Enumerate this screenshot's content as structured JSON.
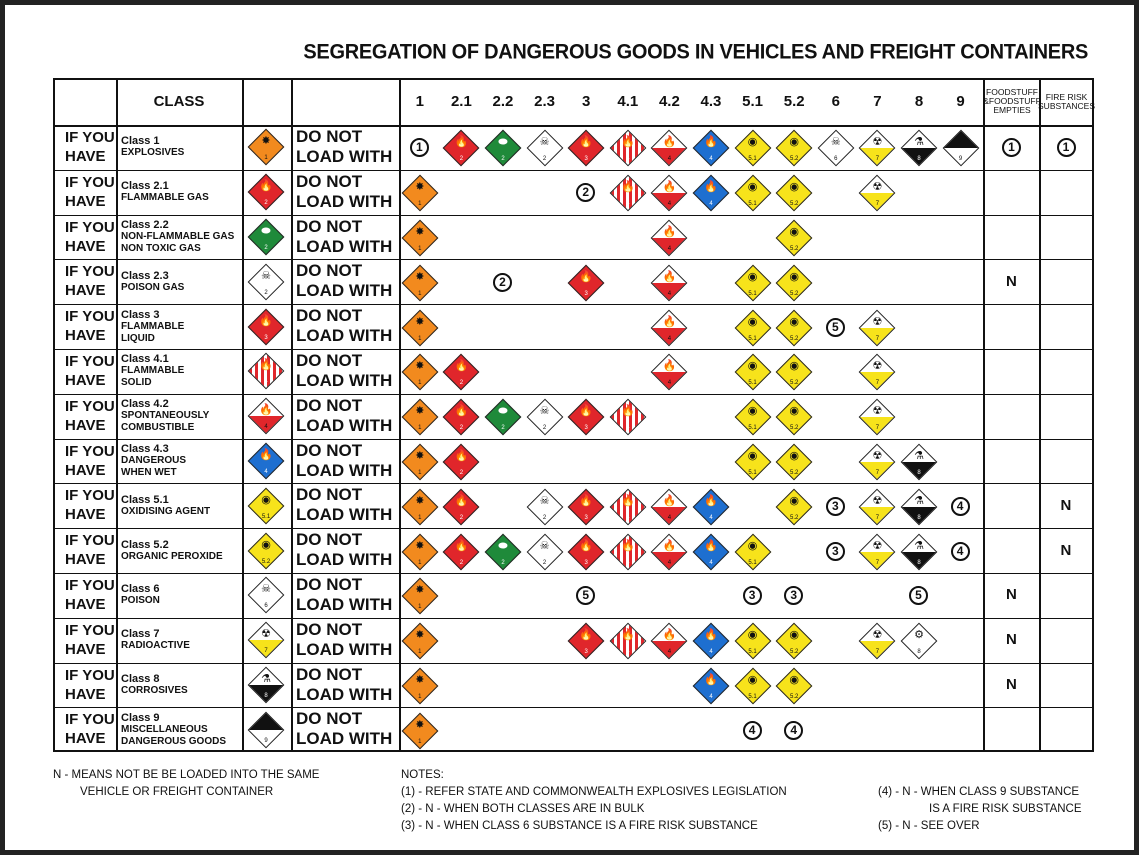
{
  "title": "SEGREGATION OF DANGEROUS GOODS IN VEHICLES AND FREIGHT CONTAINERS",
  "header": {
    "class_label": "CLASS",
    "columns": [
      "1",
      "2.1",
      "2.2",
      "2.3",
      "3",
      "4.1",
      "4.2",
      "4.3",
      "5.1",
      "5.2",
      "6",
      "7",
      "8",
      "9"
    ],
    "foodstuff": "FOODSTUFF &FOODSTUFF EMPTIES",
    "fire_risk": "FIRE RISK SUBSTANCES"
  },
  "row_labels": {
    "if_you": "IF YOU",
    "have": "HAVE",
    "do_not": "DO NOT",
    "load_with": "LOAD WITH"
  },
  "rows": [
    {
      "code": "1",
      "name_lines": [
        "Class 1",
        "EXPLOSIVES"
      ]
    },
    {
      "code": "2.1",
      "name_lines": [
        "Class 2.1",
        "FLAMMABLE GAS"
      ]
    },
    {
      "code": "2.2",
      "name_lines": [
        "Class 2.2",
        "NON-FLAMMABLE GAS",
        "NON TOXIC GAS"
      ]
    },
    {
      "code": "2.3",
      "name_lines": [
        "Class 2.3",
        "POISON GAS"
      ]
    },
    {
      "code": "3",
      "name_lines": [
        "Class 3",
        "FLAMMABLE",
        "LIQUID"
      ]
    },
    {
      "code": "4.1",
      "name_lines": [
        "Class 4.1",
        "FLAMMABLE",
        "SOLID"
      ]
    },
    {
      "code": "4.2",
      "name_lines": [
        "Class 4.2",
        "SPONTANEOUSLY",
        "COMBUSTIBLE"
      ]
    },
    {
      "code": "4.3",
      "name_lines": [
        "Class 4.3",
        "DANGEROUS",
        "WHEN WET"
      ]
    },
    {
      "code": "5.1",
      "name_lines": [
        "Class 5.1",
        "OXIDISING AGENT"
      ]
    },
    {
      "code": "5.2",
      "name_lines": [
        "Class 5.2",
        "ORGANIC PEROXIDE"
      ]
    },
    {
      "code": "6",
      "name_lines": [
        "Class 6",
        "POISON"
      ]
    },
    {
      "code": "7",
      "name_lines": [
        "Class 7",
        "RADIOACTIVE"
      ]
    },
    {
      "code": "8",
      "name_lines": [
        "Class 8",
        "CORROSIVES"
      ]
    },
    {
      "code": "9",
      "name_lines": [
        "Class 9",
        "MISCELLANEOUS",
        "DANGEROUS GOODS"
      ]
    }
  ],
  "matrix": [
    [
      "c1",
      "2.1",
      "2.2",
      "2.3",
      "3",
      "4.1",
      "4.2",
      "4.3",
      "5.1",
      "5.2",
      "6",
      "7",
      "8",
      "9",
      "c1",
      "c1"
    ],
    [
      "1",
      "",
      "",
      "",
      "c2",
      "4.1",
      "4.2",
      "4.3",
      "5.1",
      "5.2",
      "",
      "7",
      "",
      "",
      "",
      ""
    ],
    [
      "1",
      "",
      "",
      "",
      "",
      "",
      "4.2",
      "",
      "",
      "5.2",
      "",
      "",
      "",
      "",
      "",
      ""
    ],
    [
      "1",
      "",
      "c2",
      "",
      "3",
      "",
      "4.2",
      "",
      "5.1",
      "5.2",
      "",
      "",
      "",
      "",
      "N",
      ""
    ],
    [
      "1",
      "",
      "",
      "",
      "",
      "",
      "4.2",
      "",
      "5.1",
      "5.2",
      "c5",
      "7",
      "",
      "",
      "",
      ""
    ],
    [
      "1",
      "2.1",
      "",
      "",
      "",
      "",
      "4.2",
      "",
      "5.1",
      "5.2",
      "",
      "7",
      "",
      "",
      "",
      ""
    ],
    [
      "1",
      "2.1",
      "2.2",
      "2.3",
      "3",
      "4.1",
      "",
      "",
      "5.1",
      "5.2",
      "",
      "7",
      "",
      "",
      "",
      ""
    ],
    [
      "1",
      "2.1",
      "",
      "",
      "",
      "",
      "",
      "",
      "5.1",
      "5.2",
      "",
      "7",
      "8",
      "",
      "",
      ""
    ],
    [
      "1",
      "2.1",
      "",
      "2.3",
      "3",
      "4.1",
      "4.2",
      "4.3",
      "",
      "5.2",
      "c3",
      "7",
      "8",
      "c4",
      "",
      "N"
    ],
    [
      "1",
      "2.1",
      "2.2",
      "2.3",
      "3",
      "4.1",
      "4.2",
      "4.3",
      "5.1",
      "",
      "c3",
      "7",
      "8",
      "c4",
      "",
      "N"
    ],
    [
      "1",
      "",
      "",
      "",
      "c5",
      "",
      "",
      "",
      "c3",
      "c3",
      "",
      "",
      "c5",
      "",
      "N",
      ""
    ],
    [
      "1",
      "",
      "",
      "",
      "3",
      "4.1",
      "4.2",
      "4.3",
      "5.1",
      "5.2",
      "",
      "7",
      "8x",
      "",
      "N",
      ""
    ],
    [
      "1",
      "",
      "",
      "",
      "",
      "",
      "",
      "4.3",
      "5.1",
      "5.2",
      "",
      "",
      "",
      "",
      "N",
      ""
    ],
    [
      "1",
      "",
      "",
      "",
      "",
      "",
      "",
      "",
      "c4",
      "c4",
      "",
      "",
      "",
      "",
      "",
      ""
    ]
  ],
  "placards": {
    "1": {
      "bg": "#f28a1e",
      "fg": "#111",
      "glyph": "✸",
      "label": "EXPLOSIVE",
      "num": "1",
      "stripe": false
    },
    "2.1": {
      "bg": "#e0262b",
      "fg": "#fff",
      "glyph": "🔥",
      "label": "FLAMMABLE GAS",
      "num": "2",
      "stripe": false
    },
    "2.2": {
      "bg": "#1f8a3a",
      "fg": "#fff",
      "glyph": "⬬",
      "label": "NON-FLAMMABLE NON-TOXIC GAS",
      "num": "2",
      "stripe": false
    },
    "2.3": {
      "bg": "#ffffff",
      "fg": "#111",
      "glyph": "☠",
      "label": "TOXIC GAS",
      "num": "2",
      "stripe": false
    },
    "3": {
      "bg": "#e0262b",
      "fg": "#fff",
      "glyph": "🔥",
      "label": "FLAMMABLE LIQUID",
      "num": "3",
      "stripe": false
    },
    "4.1": {
      "bg": "#e0262b",
      "fg": "#fff",
      "glyph": "🔥",
      "label": "FLAMMABLE SOLID",
      "num": "4",
      "stripe": true
    },
    "4.2": {
      "bg": "#e0262b",
      "fg": "#111",
      "glyph": "🔥",
      "label": "SPONTANEOUSLY COMBUSTIBLE",
      "num": "4",
      "stripe": false,
      "half": "#ffffff"
    },
    "4.3": {
      "bg": "#1e6fd0",
      "fg": "#fff",
      "glyph": "🔥",
      "label": "DANGEROUS WHEN WET",
      "num": "4",
      "stripe": false
    },
    "5.1": {
      "bg": "#f7e31b",
      "fg": "#111",
      "glyph": "◉",
      "label": "OXIDIZING AGENT",
      "num": "5.1",
      "stripe": false
    },
    "5.2": {
      "bg": "#f7e31b",
      "fg": "#111",
      "glyph": "◉",
      "label": "ORGANIC PEROXIDE",
      "num": "5.2",
      "stripe": false
    },
    "6": {
      "bg": "#ffffff",
      "fg": "#111",
      "glyph": "☠",
      "label": "POISON",
      "num": "6",
      "stripe": false
    },
    "7": {
      "bg": "#f7e31b",
      "fg": "#111",
      "glyph": "☢",
      "label": "RADIOACTIVE",
      "num": "7",
      "stripe": false,
      "half": "#ffffff"
    },
    "8": {
      "bg": "#ffffff",
      "fg": "#111",
      "glyph": "⚗",
      "label": "CORROSIVE",
      "num": "8",
      "stripe": false,
      "halfbottom": "#111"
    },
    "8x": {
      "bg": "#ffffff",
      "fg": "#111",
      "glyph": "⚙",
      "label": "CORROSIVE",
      "num": "8",
      "stripe": false
    },
    "9": {
      "bg": "#ffffff",
      "fg": "#111",
      "glyph": "",
      "label": "MISCELLANEOUS",
      "num": "9",
      "stripe": true,
      "stripecolor": "#111"
    }
  },
  "circles": {
    "c1": "1",
    "c2": "2",
    "c3": "3",
    "c4": "4",
    "c5": "5"
  },
  "n_mark": "N",
  "legend_n": [
    "N -   MEANS NOT BE BE LOADED INTO THE SAME",
    "VEHICLE OR FREIGHT CONTAINER"
  ],
  "notes": {
    "heading": "NOTES:",
    "items": [
      "(1) - REFER STATE AND COMMONWEALTH EXPLOSIVES LEGISLATION",
      "(2) - N - WHEN BOTH CLASSES ARE IN BULK",
      "(3) - N - WHEN CLASS 6 SUBSTANCE IS A FIRE RISK SUBSTANCE"
    ],
    "items_right": [
      "(4) - N -   WHEN CLASS 9 SUBSTANCE",
      "IS A FIRE RISK SUBSTANCE",
      "(5) - N -   SEE OVER"
    ]
  }
}
